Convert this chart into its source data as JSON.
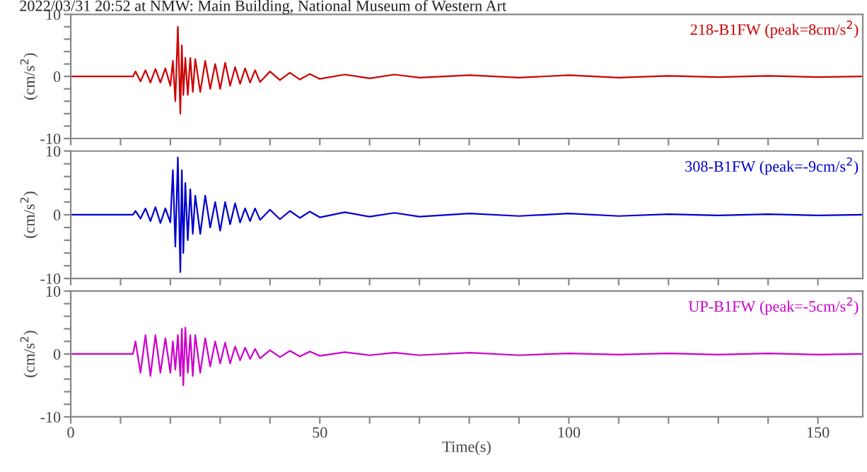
{
  "chart_data": [
    {
      "type": "line",
      "title": "2022/03/31 20:52 at NMW: Main Building, National Museum of Western Art",
      "ylabel": "(cm/s$^{2}$)",
      "tick_labels": "y",
      "legend": false,
      "x": [
        0,
        12.5,
        13,
        14,
        15,
        16,
        17,
        18,
        19,
        20,
        20.5,
        21,
        21.5,
        22,
        22.3,
        22.6,
        23,
        23.5,
        24,
        24.5,
        25,
        26,
        27,
        28,
        29,
        30,
        31,
        32,
        33,
        34,
        35,
        36,
        37,
        38,
        40,
        42,
        44,
        46,
        48,
        50,
        55,
        60,
        65,
        70,
        80,
        90,
        100,
        110,
        120,
        130,
        140,
        150,
        159
      ],
      "series": [
        {
          "name": "218-B1FW (peak=8cm/s$^{2}$)",
          "color": "#cc0000",
          "values": [
            0,
            0,
            0.8,
            -0.8,
            1,
            -1,
            1.2,
            -1,
            1.3,
            -1.5,
            2.5,
            -4,
            8,
            -6,
            5,
            -3,
            3,
            -3,
            3,
            -2.5,
            2.8,
            -2.5,
            2.5,
            -2,
            2,
            -2,
            2.2,
            -1.5,
            1.5,
            -1.2,
            1.3,
            -1,
            1,
            -0.9,
            0.8,
            -0.6,
            0.6,
            -0.5,
            0.4,
            -0.4,
            0.3,
            -0.3,
            0.3,
            -0.2,
            0.2,
            -0.2,
            0.2,
            -0.2,
            0.1,
            -0.1,
            0.1,
            -0.1,
            0
          ]
        }
      ],
      "xlim": [
        0,
        159
      ],
      "xticks": [
        0,
        {
          "value": 10,
          "label": null
        },
        {
          "value": 20,
          "label": null
        },
        {
          "value": 30,
          "label": null
        },
        {
          "value": 40,
          "label": null
        },
        50,
        {
          "value": 60,
          "label": null
        },
        {
          "value": 70,
          "label": null
        },
        {
          "value": 80,
          "label": null
        },
        {
          "value": 90,
          "label": null
        },
        100,
        {
          "value": 110,
          "label": null
        },
        {
          "value": 120,
          "label": null
        },
        {
          "value": 130,
          "label": null
        },
        {
          "value": 140,
          "label": null
        },
        150
      ],
      "ylim": [
        -10,
        10
      ],
      "yticks": [
        -10,
        {
          "value": -8,
          "label": null
        },
        {
          "value": -6,
          "label": null
        },
        {
          "value": -4,
          "label": null
        },
        {
          "value": -2,
          "label": null
        },
        0,
        {
          "value": 2,
          "label": null
        },
        {
          "value": 4,
          "label": null
        },
        {
          "value": 6,
          "label": null
        },
        {
          "value": 8,
          "label": null
        },
        10
      ]
    },
    {
      "type": "line",
      "ylabel": "(cm/s$^{2}$)",
      "tick_labels": "y",
      "legend": false,
      "x": [
        0,
        12.5,
        13,
        14,
        15,
        16,
        17,
        18,
        19,
        20,
        20.5,
        21,
        21.5,
        22,
        22.3,
        22.6,
        23,
        23.5,
        24,
        24.5,
        25,
        26,
        27,
        28,
        29,
        30,
        31,
        32,
        33,
        34,
        35,
        36,
        37,
        38,
        40,
        42,
        44,
        46,
        48,
        50,
        55,
        60,
        65,
        70,
        80,
        90,
        100,
        110,
        120,
        130,
        140,
        150,
        159
      ],
      "series": [
        {
          "name": "308-B1FW (peak=-9cm/s$^{2}$)",
          "color": "#0000cc",
          "values": [
            0,
            0,
            0.6,
            -0.6,
            1,
            -1,
            1.2,
            -1.3,
            1,
            -1.2,
            7,
            -5,
            9,
            -9,
            7,
            -6,
            5,
            -4,
            4,
            -3,
            3,
            -3,
            3,
            -2,
            2,
            -2.5,
            2,
            -1.5,
            1.8,
            -1.2,
            1,
            -1,
            1,
            -0.8,
            0.8,
            -0.7,
            0.6,
            -0.5,
            0.5,
            -0.4,
            0.4,
            -0.3,
            0.3,
            -0.3,
            0.2,
            -0.2,
            0.2,
            -0.2,
            0.1,
            -0.1,
            0.1,
            -0.1,
            0
          ]
        }
      ],
      "xlim": [
        0,
        159
      ],
      "xticks": [
        0,
        {
          "value": 10,
          "label": null
        },
        {
          "value": 20,
          "label": null
        },
        {
          "value": 30,
          "label": null
        },
        {
          "value": 40,
          "label": null
        },
        50,
        {
          "value": 60,
          "label": null
        },
        {
          "value": 70,
          "label": null
        },
        {
          "value": 80,
          "label": null
        },
        {
          "value": 90,
          "label": null
        },
        100,
        {
          "value": 110,
          "label": null
        },
        {
          "value": 120,
          "label": null
        },
        {
          "value": 130,
          "label": null
        },
        {
          "value": 140,
          "label": null
        },
        150
      ],
      "ylim": [
        -10,
        10
      ],
      "yticks": [
        -10,
        {
          "value": -8,
          "label": null
        },
        {
          "value": -6,
          "label": null
        },
        {
          "value": -4,
          "label": null
        },
        {
          "value": -2,
          "label": null
        },
        0,
        {
          "value": 2,
          "label": null
        },
        {
          "value": 4,
          "label": null
        },
        {
          "value": 6,
          "label": null
        },
        {
          "value": 8,
          "label": null
        },
        10
      ]
    },
    {
      "type": "line",
      "ylabel": "(cm/s$^{2}$)",
      "xlabel": "Time(s)",
      "legend": false,
      "x": [
        0,
        12.5,
        13,
        14,
        15,
        16,
        17,
        18,
        19,
        20,
        20.5,
        21,
        21.5,
        22,
        22.3,
        22.6,
        23,
        23.5,
        24,
        24.5,
        25,
        26,
        27,
        28,
        29,
        30,
        31,
        32,
        33,
        34,
        35,
        36,
        37,
        38,
        40,
        42,
        44,
        46,
        48,
        50,
        55,
        60,
        65,
        70,
        80,
        90,
        100,
        110,
        120,
        130,
        140,
        150,
        159
      ],
      "series": [
        {
          "name": "UP-B1FW (peak=-5cm/s$^{2}$)",
          "color": "#cc00cc",
          "values": [
            0,
            0,
            2,
            -3,
            3,
            -3.5,
            3,
            -3,
            2.5,
            -3,
            2,
            -2.5,
            3,
            -3.5,
            4,
            -5,
            4.2,
            -3,
            3,
            -3.5,
            3,
            -3,
            2.5,
            -2,
            2,
            -1.5,
            1.8,
            -1.5,
            1.2,
            -1,
            1,
            -0.8,
            0.8,
            -0.7,
            0.6,
            -0.5,
            0.5,
            -0.4,
            0.4,
            -0.3,
            0.3,
            -0.2,
            0.2,
            -0.2,
            0.2,
            -0.2,
            0.1,
            -0.1,
            0.1,
            -0.1,
            0.1,
            -0.1,
            0
          ]
        }
      ],
      "xlim": [
        0,
        159
      ],
      "xticks": [
        0,
        {
          "value": 10,
          "label": null
        },
        {
          "value": 20,
          "label": null
        },
        {
          "value": 30,
          "label": null
        },
        {
          "value": 40,
          "label": null
        },
        50,
        {
          "value": 60,
          "label": null
        },
        {
          "value": 70,
          "label": null
        },
        {
          "value": 80,
          "label": null
        },
        {
          "value": 90,
          "label": null
        },
        100,
        {
          "value": 110,
          "label": null
        },
        {
          "value": 120,
          "label": null
        },
        {
          "value": 130,
          "label": null
        },
        {
          "value": 140,
          "label": null
        },
        150
      ],
      "ylim": [
        -10,
        10
      ],
      "yticks": [
        -10,
        {
          "value": -8,
          "label": null
        },
        {
          "value": -6,
          "label": null
        },
        {
          "value": -4,
          "label": null
        },
        {
          "value": -2,
          "label": null
        },
        0,
        {
          "value": 2,
          "label": null
        },
        {
          "value": 4,
          "label": null
        },
        {
          "value": 6,
          "label": null
        },
        {
          "value": 8,
          "label": null
        },
        10
      ]
    }
  ]
}
